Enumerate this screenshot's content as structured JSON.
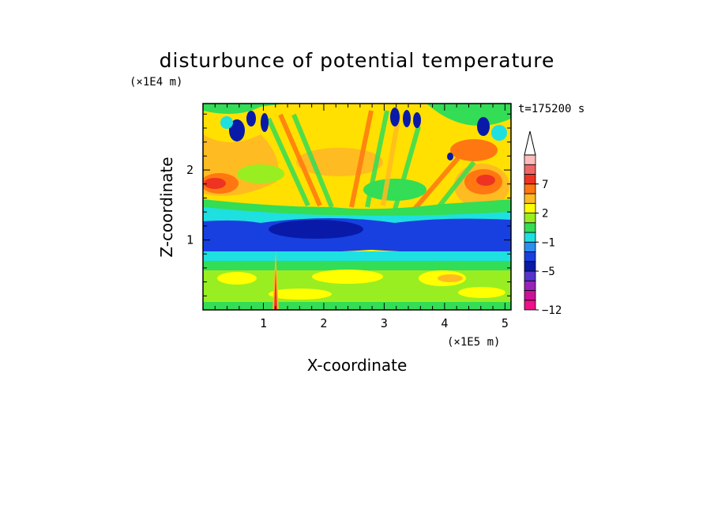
{
  "chart_data": {
    "type": "heatmap",
    "title": "disturbunce of potential temperature",
    "time_label": "t=175200 s",
    "xlabel": "X-coordinate",
    "ylabel": "Z-coordinate",
    "x_unit": "(×1E5 m)",
    "y_unit": "(×1E4 m)",
    "xlim": [
      0,
      5.1
    ],
    "ylim": [
      0,
      2.95
    ],
    "x_ticks": [
      1,
      2,
      3,
      4,
      5
    ],
    "y_ticks": [
      1,
      2
    ],
    "colorbar": {
      "labels": [
        "7",
        "2",
        "−1",
        "−5",
        "−12"
      ],
      "colors": [
        "#ee1188",
        "#cc1199",
        "#9922bb",
        "#5533cc",
        "#0a1aa8",
        "#1840e0",
        "#2a90f0",
        "#1ee0e0",
        "#33dd55",
        "#99ee22",
        "#ffff00",
        "#ffbb22",
        "#ff7711",
        "#ee3322",
        "#ee6666",
        "#ffbbbb"
      ],
      "extend_top": true
    },
    "bands": [
      {
        "z_min": 2.35,
        "z_max": 2.95,
        "level": "warm",
        "note": "upper layer, yellow/orange with deep-blue wave cells near the top"
      },
      {
        "z_min": 1.55,
        "z_max": 2.35,
        "level": "warm",
        "note": "orange/red wave crests near x=0.2 and x=4.4-4.8"
      },
      {
        "z_min": 1.25,
        "z_max": 1.55,
        "level": "cool",
        "note": "cyan/green transition layer"
      },
      {
        "z_min": 0.85,
        "z_max": 1.25,
        "level": "cold",
        "note": "deep-blue band across full width"
      },
      {
        "z_min": 0.55,
        "z_max": 0.85,
        "level": "cool",
        "note": "cyan/green"
      },
      {
        "z_min": 0.0,
        "z_max": 0.55,
        "level": "warm",
        "note": "yellow/green mixed with orange patches"
      }
    ],
    "features": [
      {
        "x": 1.2,
        "z_max": 0.85,
        "note": "narrow vertical plume from surface"
      },
      {
        "x_min": 1.1,
        "x_max": 3.3,
        "z_min": 1.4,
        "z_max": 2.9,
        "note": "fan of diagonal wave stripes"
      }
    ]
  }
}
